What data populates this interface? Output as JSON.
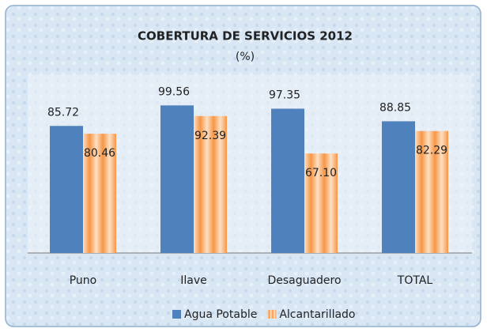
{
  "chart_data": {
    "type": "bar",
    "title": "COBERTURA DE SERVICIOS 2012",
    "subtitle": "(%)",
    "categories": [
      "Puno",
      "Ilave",
      "Desaguadero",
      "TOTAL"
    ],
    "series": [
      {
        "name": "Agua Potable",
        "color": "#4f81bd",
        "values": [
          85.72,
          99.56,
          97.35,
          88.85
        ]
      },
      {
        "name": "Alcantarillado",
        "color": "#f79646",
        "values": [
          80.46,
          92.39,
          67.1,
          82.29
        ],
        "value_labels": [
          "80.46",
          "92.39",
          "67.10",
          "82.29"
        ]
      }
    ],
    "ylim": [
      0,
      120
    ],
    "legend": "bottom"
  }
}
